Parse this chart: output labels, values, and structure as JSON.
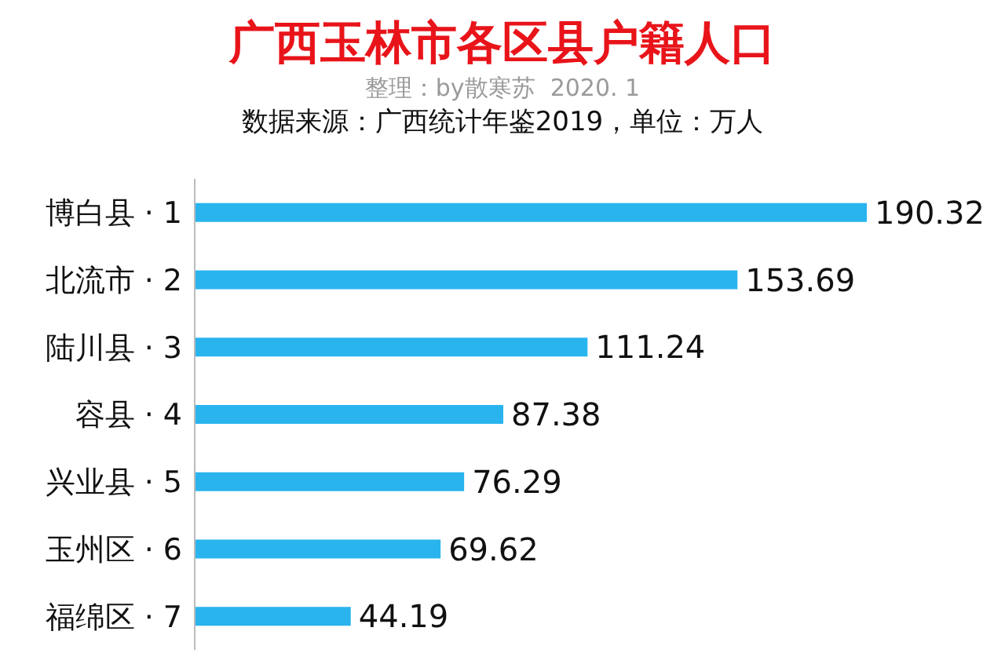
{
  "chart_data": {
    "type": "bar",
    "orientation": "horizontal",
    "title": "广西玉林市各区县户籍人口",
    "subtitle": "整理：by散寒苏  2020. 1",
    "annotations": [
      "数据来源：广西统计年鉴2019，单位：万人"
    ],
    "categories": [
      "博白县 · 1",
      "北流市 · 2",
      "陆川县 · 3",
      "容县 · 4",
      "兴业县 · 5",
      "玉州区 · 6",
      "福绵区 · 7"
    ],
    "values": [
      190.32,
      153.69,
      111.24,
      87.38,
      76.29,
      69.62,
      44.19
    ],
    "color": "#29b4ee",
    "tick_labels": "y",
    "data_labels": true,
    "grid": false,
    "legend": false
  }
}
